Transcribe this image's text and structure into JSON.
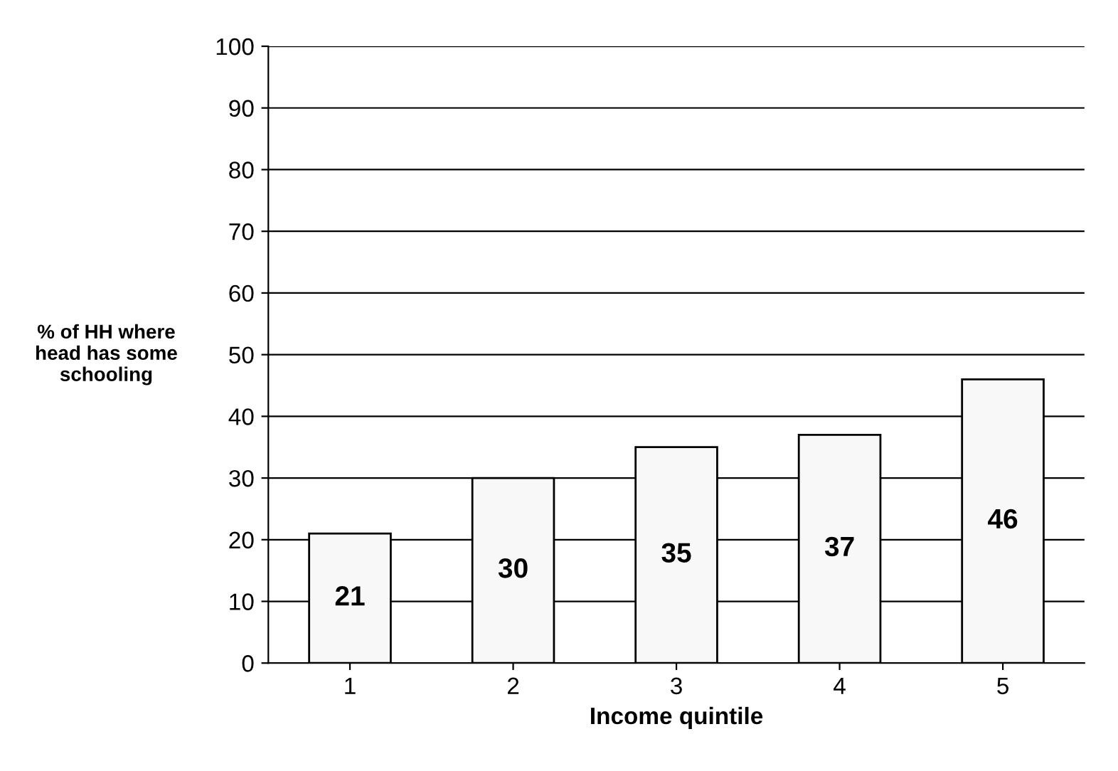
{
  "chart_data": {
    "type": "bar",
    "xlabel": "Income quintile",
    "ylabel": "% of HH where\nhead has some\nschooling",
    "categories": [
      "1",
      "2",
      "3",
      "4",
      "5"
    ],
    "values": [
      21,
      30,
      35,
      37,
      46
    ],
    "color": "#f8f8f8",
    "ylim": [
      0,
      100
    ],
    "yticks": [
      0,
      10,
      20,
      30,
      40,
      50,
      60,
      70,
      80,
      90,
      100
    ],
    "grid": "y",
    "data_labels": true
  }
}
